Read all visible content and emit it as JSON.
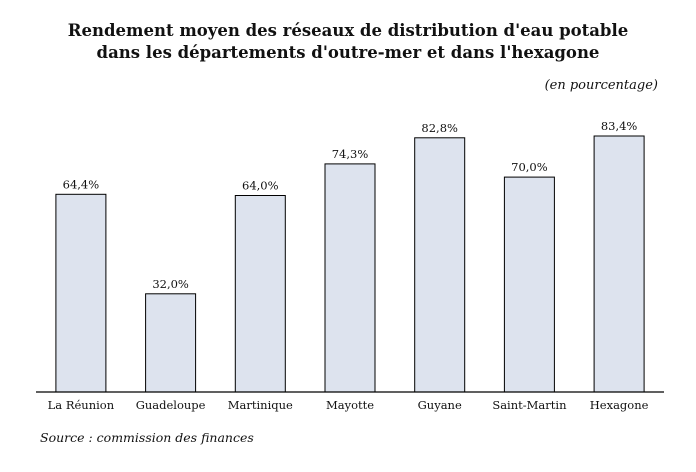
{
  "chart_data": {
    "type": "bar",
    "title": "Rendement moyen des réseaux de distribution d'eau potable",
    "subtitle": "dans les départements d'outre-mer et dans l'hexagone",
    "unit_label": "(en pourcentage)",
    "source": "Source : commission des finances",
    "categories": [
      "La Réunion",
      "Guadeloupe",
      "Martinique",
      "Mayotte",
      "Guyane",
      "Saint-Martin",
      "Hexagone"
    ],
    "values": [
      64.4,
      32.0,
      64.0,
      74.3,
      82.8,
      70.0,
      83.4
    ],
    "data_labels": [
      "64,4%",
      "32,0%",
      "64,0%",
      "74,3%",
      "82,8%",
      "70,0%",
      "83,4%"
    ],
    "ylim": [
      0,
      100
    ],
    "grid": false,
    "bar_color": "#dde3ee",
    "bar_stroke": "#000000"
  }
}
